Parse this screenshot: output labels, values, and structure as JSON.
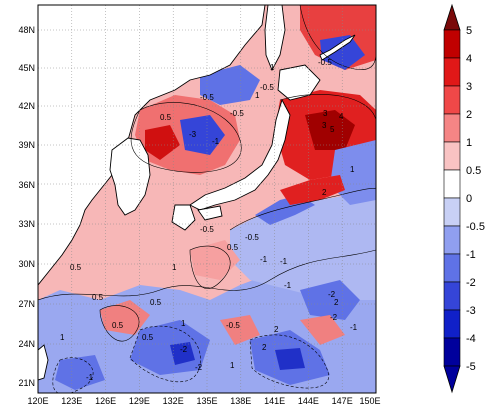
{
  "map": {
    "lon_ticks": [
      "120E",
      "123E",
      "126E",
      "129E",
      "132E",
      "135E",
      "138E",
      "141E",
      "144E",
      "147E",
      "150E"
    ],
    "lat_ticks": [
      "21N",
      "24N",
      "27N",
      "30N",
      "33N",
      "36N",
      "39N",
      "42N",
      "45N",
      "48N"
    ],
    "lon_range": [
      120,
      150
    ],
    "lat_range": [
      20,
      50
    ],
    "grid": "dotted",
    "land_color": "#ffffff",
    "coastline_color": "#000000"
  },
  "colorbar": {
    "labels": [
      "5",
      "4",
      "3",
      "2",
      "1",
      "0.5",
      "0",
      "-0.5",
      "-1",
      "-2",
      "-3",
      "-4",
      "-5"
    ],
    "colors": [
      "#7a0a0a",
      "#c00000",
      "#e01818",
      "#f04848",
      "#f58585",
      "#f9c3c3",
      "#ffffff",
      "#c8d0f5",
      "#909ff0",
      "#5f72e6",
      "#3545d8",
      "#1020c8",
      "#00009c"
    ],
    "top_color": "#7a0a0a",
    "bottom_color": "#00009c"
  },
  "contour_labels": [
    "0.5",
    "1",
    "-0.5",
    "-1",
    "2",
    "-2",
    "3",
    "4",
    "5",
    "-0.5",
    "0.5",
    "1",
    "-1",
    "2",
    "-2",
    "0.5",
    "-0.5",
    "1",
    "-1",
    "0.5",
    "-0.5",
    "1",
    "-1",
    "2",
    "-2",
    "3",
    "-3",
    "0.5",
    "-0.5",
    "1",
    "-1",
    "0.5",
    "1",
    "-0.5",
    "-1",
    "2",
    "-2",
    "0.5",
    "-0.5",
    "1"
  ]
}
